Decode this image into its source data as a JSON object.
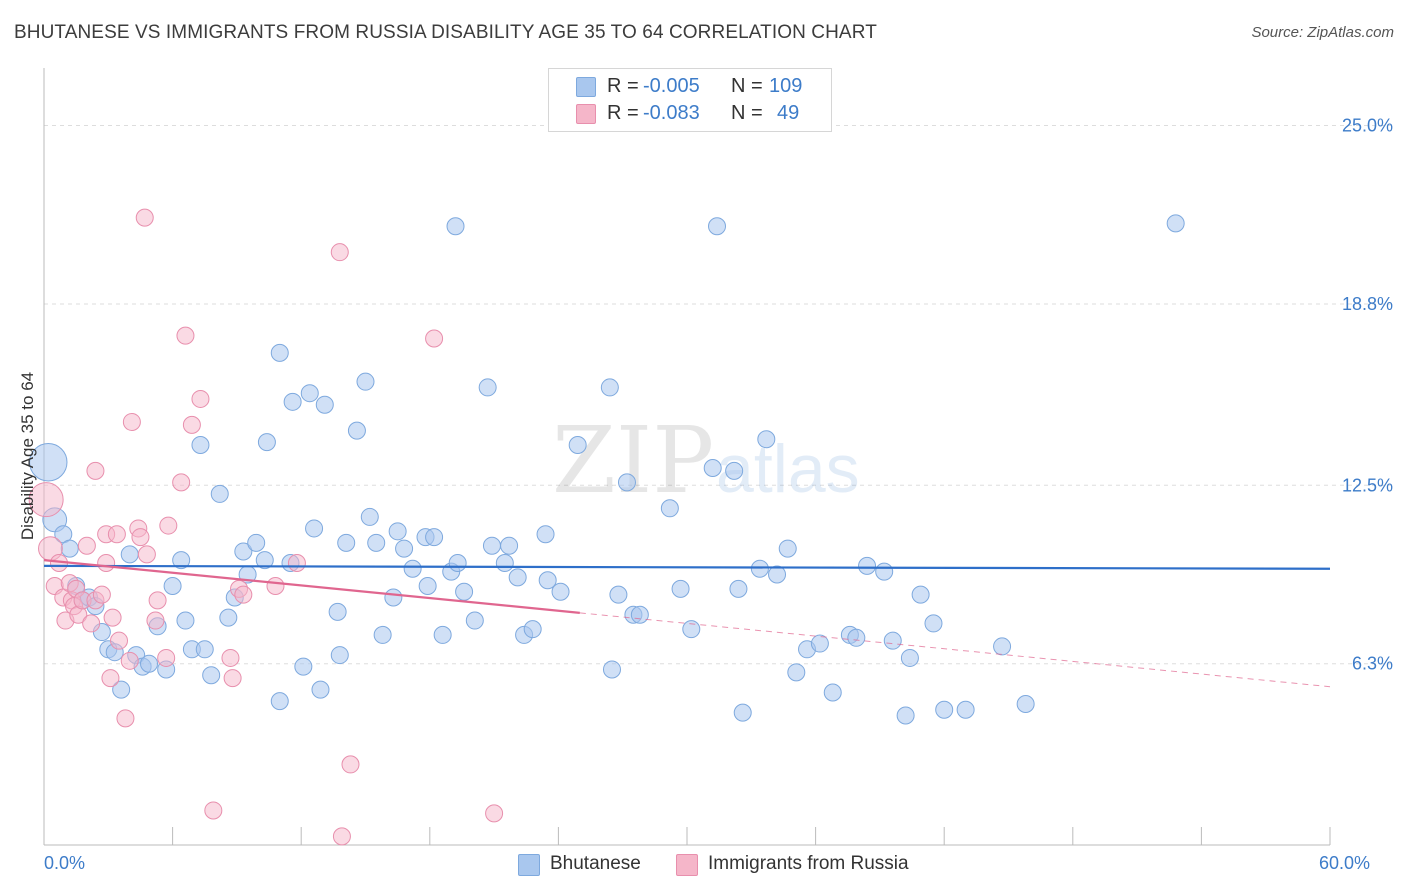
{
  "title": "BHUTANESE VS IMMIGRANTS FROM RUSSIA DISABILITY AGE 35 TO 64 CORRELATION CHART",
  "source": "Source: ZipAtlas.com",
  "watermark": {
    "zip": "ZIP",
    "atlas": "atlas"
  },
  "colors": {
    "blue": "#3d7cc9",
    "blue_fill": "#a9c7ee",
    "blue_line": "#2e6fc9",
    "pink": "#e0668f",
    "pink_fill": "#f5b6c9",
    "grid": "#dddddd"
  },
  "legend": {
    "rows": [
      {
        "r_label": "R =",
        "r_value": "-0.005",
        "n_label": "N =",
        "n_value": "109"
      },
      {
        "r_label": "R =",
        "r_value": "-0.083",
        "n_label": "N =",
        "n_value": "49"
      }
    ]
  },
  "bottom_legend": [
    "Bhutanese",
    "Immigrants from Russia"
  ],
  "chart_data": {
    "type": "scatter",
    "ylabel": "Disability Age 35 to 64",
    "xlabel": "",
    "x_range": [
      0,
      60
    ],
    "y_range": [
      0,
      27
    ],
    "x_tick_labels": [
      {
        "value": 0,
        "label": "0.0%"
      },
      {
        "value": 60,
        "label": "60.0%"
      }
    ],
    "y_tick_labels": [
      {
        "value": 6.3,
        "label": "6.3%"
      },
      {
        "value": 12.5,
        "label": "12.5%"
      },
      {
        "value": 18.8,
        "label": "18.8%"
      },
      {
        "value": 25.0,
        "label": "25.0%"
      }
    ],
    "grid": true,
    "series": [
      {
        "name": "Bhutanese",
        "trend": {
          "x": [
            0,
            60
          ],
          "y": [
            9.7,
            9.6
          ],
          "dashed_from": null
        },
        "points": [
          [
            0.2,
            13.3,
            22
          ],
          [
            0.5,
            11.3,
            14
          ],
          [
            0.9,
            10.8,
            10
          ],
          [
            1.2,
            10.3,
            10
          ],
          [
            1.5,
            9.0,
            10
          ],
          [
            1.8,
            8.5,
            10
          ],
          [
            2.1,
            8.6,
            10
          ],
          [
            2.4,
            8.3,
            10
          ],
          [
            2.7,
            7.4,
            10
          ],
          [
            3.0,
            6.8,
            10
          ],
          [
            3.3,
            6.7,
            10
          ],
          [
            3.6,
            5.4,
            10
          ],
          [
            4.0,
            10.1,
            10
          ],
          [
            4.3,
            6.6,
            10
          ],
          [
            4.6,
            6.2,
            10
          ],
          [
            4.9,
            6.3,
            10
          ],
          [
            5.3,
            7.6,
            10
          ],
          [
            5.7,
            6.1,
            10
          ],
          [
            6.0,
            9.0,
            10
          ],
          [
            6.4,
            9.9,
            10
          ],
          [
            6.6,
            7.8,
            10
          ],
          [
            6.9,
            6.8,
            10
          ],
          [
            7.3,
            13.9,
            10
          ],
          [
            7.5,
            6.8,
            10
          ],
          [
            7.8,
            5.9,
            10
          ],
          [
            8.2,
            12.2,
            10
          ],
          [
            8.6,
            7.9,
            10
          ],
          [
            8.9,
            8.6,
            10
          ],
          [
            9.3,
            10.2,
            10
          ],
          [
            9.5,
            9.4,
            10
          ],
          [
            9.9,
            10.5,
            10
          ],
          [
            10.3,
            9.9,
            10
          ],
          [
            10.4,
            14.0,
            10
          ],
          [
            11.0,
            17.1,
            10
          ],
          [
            11.0,
            5.0,
            10
          ],
          [
            11.5,
            9.8,
            10
          ],
          [
            11.6,
            15.4,
            10
          ],
          [
            12.1,
            6.2,
            10
          ],
          [
            12.4,
            15.7,
            10
          ],
          [
            12.6,
            11.0,
            10
          ],
          [
            12.9,
            5.4,
            10
          ],
          [
            13.1,
            15.3,
            10
          ],
          [
            13.7,
            8.1,
            10
          ],
          [
            13.8,
            6.6,
            10
          ],
          [
            14.1,
            10.5,
            10
          ],
          [
            14.6,
            14.4,
            10
          ],
          [
            15.0,
            16.1,
            10
          ],
          [
            15.2,
            11.4,
            10
          ],
          [
            15.5,
            10.5,
            10
          ],
          [
            15.8,
            7.3,
            10
          ],
          [
            16.3,
            8.6,
            10
          ],
          [
            16.5,
            10.9,
            10
          ],
          [
            16.8,
            10.3,
            10
          ],
          [
            17.2,
            9.6,
            10
          ],
          [
            17.8,
            10.7,
            10
          ],
          [
            17.9,
            9.0,
            10
          ],
          [
            18.2,
            10.7,
            10
          ],
          [
            18.6,
            7.3,
            10
          ],
          [
            19.0,
            9.5,
            10
          ],
          [
            19.2,
            21.5,
            10
          ],
          [
            19.3,
            9.8,
            10
          ],
          [
            19.6,
            8.8,
            10
          ],
          [
            20.1,
            7.8,
            10
          ],
          [
            20.7,
            15.9,
            10
          ],
          [
            20.9,
            10.4,
            10
          ],
          [
            21.5,
            9.8,
            10
          ],
          [
            21.7,
            10.4,
            10
          ],
          [
            22.1,
            9.3,
            10
          ],
          [
            22.4,
            7.3,
            10
          ],
          [
            22.8,
            7.5,
            10
          ],
          [
            23.4,
            10.8,
            10
          ],
          [
            23.5,
            9.2,
            10
          ],
          [
            24.1,
            8.8,
            10
          ],
          [
            24.9,
            13.9,
            10
          ],
          [
            26.4,
            15.9,
            10
          ],
          [
            26.5,
            6.1,
            10
          ],
          [
            26.8,
            8.7,
            10
          ],
          [
            27.2,
            12.6,
            10
          ],
          [
            27.5,
            8.0,
            10
          ],
          [
            27.8,
            8.0,
            10
          ],
          [
            29.2,
            11.7,
            10
          ],
          [
            29.7,
            8.9,
            10
          ],
          [
            30.2,
            7.5,
            10
          ],
          [
            31.2,
            13.1,
            10
          ],
          [
            31.4,
            21.5,
            10
          ],
          [
            32.2,
            13.0,
            10
          ],
          [
            32.4,
            8.9,
            10
          ],
          [
            32.6,
            4.6,
            10
          ],
          [
            33.4,
            9.6,
            10
          ],
          [
            33.7,
            14.1,
            10
          ],
          [
            34.2,
            9.4,
            10
          ],
          [
            34.7,
            10.3,
            10
          ],
          [
            35.1,
            6.0,
            10
          ],
          [
            35.6,
            6.8,
            10
          ],
          [
            36.2,
            7.0,
            10
          ],
          [
            36.8,
            5.3,
            10
          ],
          [
            37.6,
            7.3,
            10
          ],
          [
            37.9,
            7.2,
            10
          ],
          [
            38.4,
            9.7,
            10
          ],
          [
            39.2,
            9.5,
            10
          ],
          [
            39.6,
            7.1,
            10
          ],
          [
            40.2,
            4.5,
            10
          ],
          [
            40.4,
            6.5,
            10
          ],
          [
            40.9,
            8.7,
            10
          ],
          [
            41.5,
            7.7,
            10
          ],
          [
            42.0,
            4.7,
            10
          ],
          [
            43.0,
            4.7,
            10
          ],
          [
            44.7,
            6.9,
            10
          ],
          [
            45.8,
            4.9,
            10
          ],
          [
            52.8,
            21.6,
            10
          ]
        ]
      },
      {
        "name": "Immigrants from Russia",
        "trend": {
          "x": [
            0,
            60
          ],
          "y": [
            9.9,
            5.5
          ],
          "dashed_from": 25
        },
        "points": [
          [
            0.1,
            12.0,
            20
          ],
          [
            0.3,
            10.3,
            14
          ],
          [
            0.5,
            9.0,
            10
          ],
          [
            0.7,
            9.8,
            10
          ],
          [
            0.9,
            8.6,
            10
          ],
          [
            1.0,
            7.8,
            10
          ],
          [
            1.2,
            9.1,
            10
          ],
          [
            1.3,
            8.5,
            10
          ],
          [
            1.4,
            8.3,
            10
          ],
          [
            1.5,
            8.9,
            10
          ],
          [
            1.6,
            8.0,
            10
          ],
          [
            1.8,
            8.5,
            10
          ],
          [
            2.0,
            10.4,
            10
          ],
          [
            2.2,
            7.7,
            10
          ],
          [
            2.4,
            8.5,
            10
          ],
          [
            2.4,
            13.0,
            10
          ],
          [
            2.7,
            8.7,
            10
          ],
          [
            2.9,
            10.8,
            10
          ],
          [
            2.9,
            9.8,
            10
          ],
          [
            3.1,
            5.8,
            10
          ],
          [
            3.2,
            7.9,
            10
          ],
          [
            3.4,
            10.8,
            10
          ],
          [
            3.5,
            7.1,
            10
          ],
          [
            3.8,
            4.4,
            10
          ],
          [
            4.0,
            6.4,
            10
          ],
          [
            4.1,
            14.7,
            10
          ],
          [
            4.4,
            11.0,
            10
          ],
          [
            4.5,
            10.7,
            10
          ],
          [
            4.7,
            21.8,
            10
          ],
          [
            4.8,
            10.1,
            10
          ],
          [
            5.2,
            7.8,
            10
          ],
          [
            5.3,
            8.5,
            10
          ],
          [
            5.7,
            6.5,
            10
          ],
          [
            5.8,
            11.1,
            10
          ],
          [
            6.4,
            12.6,
            10
          ],
          [
            6.6,
            17.7,
            10
          ],
          [
            6.9,
            14.6,
            10
          ],
          [
            7.3,
            15.5,
            10
          ],
          [
            7.9,
            1.2,
            10
          ],
          [
            8.7,
            6.5,
            10
          ],
          [
            8.8,
            5.8,
            10
          ],
          [
            9.1,
            8.9,
            10
          ],
          [
            9.3,
            8.7,
            10
          ],
          [
            10.8,
            9.0,
            10
          ],
          [
            11.8,
            9.8,
            10
          ],
          [
            13.8,
            20.6,
            10
          ],
          [
            13.9,
            0.3,
            10
          ],
          [
            14.3,
            2.8,
            10
          ],
          [
            18.2,
            17.6,
            10
          ],
          [
            21.0,
            1.1,
            10
          ]
        ]
      }
    ]
  }
}
